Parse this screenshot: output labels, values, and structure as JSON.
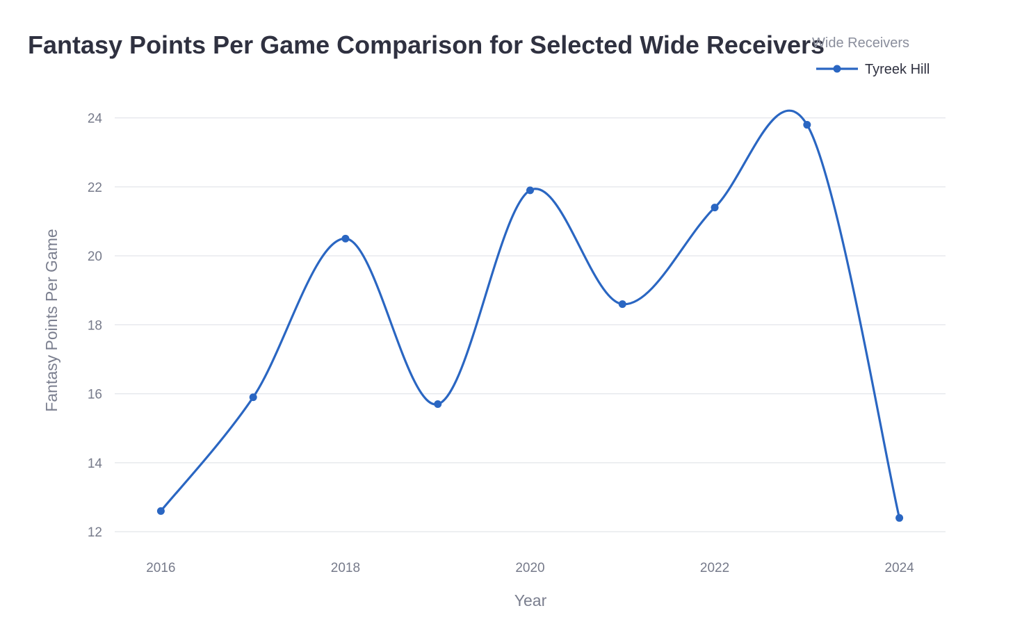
{
  "chart_data": {
    "type": "line",
    "title": "Fantasy Points Per Game Comparison for Selected Wide Receivers",
    "xlabel": "Year",
    "ylabel": "Fantasy Points Per Game",
    "legend_title": "Wide Receivers",
    "legend_position": "top-right",
    "grid": true,
    "xlim": [
      2015.5,
      2024.5
    ],
    "ylim": [
      11.6,
      25.0
    ],
    "x_ticks": [
      "2016",
      "2018",
      "2020",
      "2022",
      "2024"
    ],
    "y_ticks": [
      "12",
      "14",
      "16",
      "18",
      "20",
      "22",
      "24"
    ],
    "series": [
      {
        "name": "Tyreek Hill",
        "color": "#2a66c2",
        "x": [
          2016,
          2017,
          2018,
          2019,
          2020,
          2021,
          2022,
          2023,
          2024
        ],
        "y": [
          12.6,
          15.9,
          20.5,
          15.7,
          21.9,
          18.6,
          21.4,
          23.8,
          12.4
        ]
      }
    ]
  }
}
